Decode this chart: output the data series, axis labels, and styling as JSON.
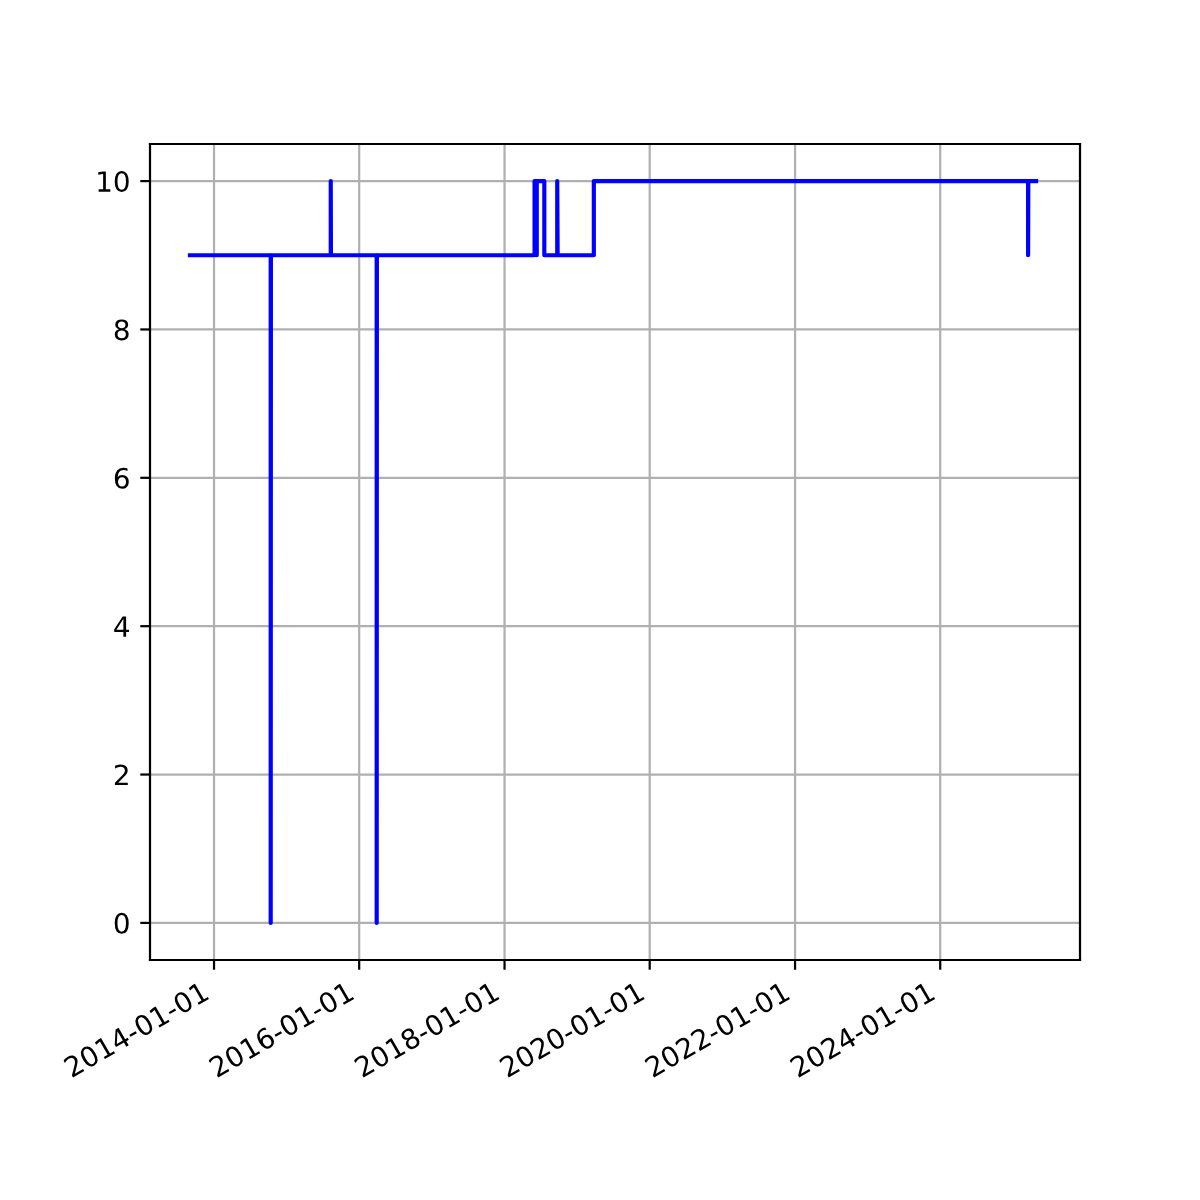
{
  "chart_data": {
    "type": "line",
    "x": [
      "2013-09-02",
      "2014-10-13",
      "2014-10-13",
      "2014-10-14",
      "2015-08-11",
      "2015-08-11",
      "2015-08-12",
      "2016-03-29",
      "2016-03-29",
      "2016-03-30",
      "2018-06-01",
      "2018-06-01",
      "2018-06-10",
      "2018-06-10",
      "2018-06-12",
      "2018-06-12",
      "2018-07-20",
      "2018-07-20",
      "2018-09-23",
      "2018-09-23",
      "2018-09-25",
      "2019-03-26",
      "2019-03-26",
      "2025-03-18",
      "2025-03-18",
      "2025-03-19",
      "2025-04-27"
    ],
    "series": [
      {
        "color": "#0000ff",
        "values": [
          9,
          9,
          0,
          9,
          9,
          10,
          9,
          9,
          0,
          9,
          9,
          10,
          10,
          9,
          9,
          10,
          10,
          9,
          9,
          10,
          9,
          9,
          10,
          10,
          9,
          10,
          10
        ]
      }
    ],
    "xlim": [
      "2013-02-13",
      "2025-12-04"
    ],
    "xticks": [
      "2014-01-01",
      "2016-01-01",
      "2018-01-01",
      "2020-01-01",
      "2022-01-01",
      "2024-01-01"
    ],
    "ylim": [
      -0.5,
      10.5
    ],
    "yticks": [
      0,
      2,
      4,
      6,
      8,
      10
    ],
    "grid": true
  }
}
